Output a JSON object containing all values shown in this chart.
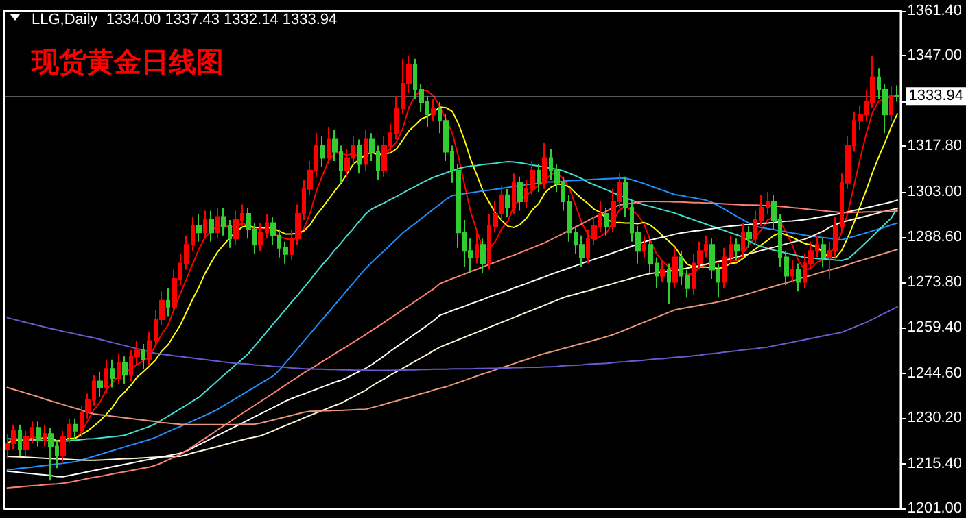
{
  "chart_data": {
    "type": "candlestick",
    "title": "现货黄金日线图",
    "subtitle": "LLG,Daily  1334.00 1337.43 1332.14 1333.94",
    "categories": [
      null,
      null,
      null,
      null,
      null,
      null,
      null,
      null,
      null,
      null,
      null,
      null,
      null,
      null,
      null,
      null,
      null,
      null,
      null,
      null,
      null,
      null,
      null,
      null,
      null,
      null,
      null,
      null,
      null,
      null,
      null,
      null,
      null,
      null,
      null,
      null,
      null,
      null,
      null,
      null,
      null,
      null,
      null,
      null,
      null,
      null,
      null,
      null,
      null,
      null,
      null,
      null,
      null,
      null,
      null,
      null,
      null,
      null,
      null,
      null,
      null,
      null,
      null,
      null,
      null,
      null,
      null,
      null,
      null,
      null,
      null,
      null,
      null,
      null,
      null,
      null,
      null,
      null,
      null,
      null,
      null,
      null,
      null,
      null,
      null,
      null,
      null,
      null,
      null,
      null,
      null,
      null,
      null,
      null,
      null,
      null,
      null,
      null,
      null,
      null,
      null,
      null,
      null,
      null,
      null,
      null,
      null,
      null,
      null,
      null,
      null,
      null,
      null,
      null,
      null,
      null,
      null,
      null,
      null,
      null,
      null,
      null,
      null,
      null,
      null,
      null,
      null,
      null,
      null,
      null,
      null,
      null,
      null,
      null,
      null,
      null,
      null,
      null,
      null,
      null,
      null,
      null,
      null,
      null,
      null
    ],
    "ohlc": [
      [
        1220,
        1225,
        1217,
        1222
      ],
      [
        1222,
        1228,
        1220,
        1226
      ],
      [
        1226,
        1228,
        1218,
        1220
      ],
      [
        1220,
        1226,
        1218,
        1224
      ],
      [
        1224,
        1229,
        1222,
        1227
      ],
      [
        1227,
        1229,
        1221,
        1223
      ],
      [
        1223,
        1228,
        1221,
        1225
      ],
      [
        1225,
        1227,
        1210,
        1221
      ],
      [
        1221,
        1223,
        1214,
        1218
      ],
      [
        1218,
        1226,
        1216,
        1224
      ],
      [
        1224,
        1230,
        1222,
        1228
      ],
      [
        1228,
        1230,
        1223,
        1226
      ],
      [
        1226,
        1234,
        1224,
        1232
      ],
      [
        1232,
        1238,
        1230,
        1236
      ],
      [
        1236,
        1244,
        1234,
        1242
      ],
      [
        1242,
        1245,
        1237,
        1240
      ],
      [
        1240,
        1249,
        1238,
        1246
      ],
      [
        1246,
        1249,
        1240,
        1243
      ],
      [
        1243,
        1251,
        1241,
        1248
      ],
      [
        1248,
        1250,
        1241,
        1244
      ],
      [
        1244,
        1252,
        1242,
        1250
      ],
      [
        1250,
        1255,
        1247,
        1252
      ],
      [
        1252,
        1254,
        1246,
        1249
      ],
      [
        1249,
        1258,
        1247,
        1255
      ],
      [
        1255,
        1265,
        1253,
        1262
      ],
      [
        1262,
        1271,
        1260,
        1268
      ],
      [
        1268,
        1272,
        1263,
        1266
      ],
      [
        1266,
        1278,
        1264,
        1275
      ],
      [
        1275,
        1283,
        1273,
        1280
      ],
      [
        1280,
        1289,
        1278,
        1286
      ],
      [
        1286,
        1295,
        1284,
        1292
      ],
      [
        1292,
        1296,
        1287,
        1290
      ],
      [
        1290,
        1297,
        1288,
        1294
      ],
      [
        1294,
        1297,
        1287,
        1290
      ],
      [
        1290,
        1298,
        1288,
        1295
      ],
      [
        1295,
        1298,
        1289,
        1292
      ],
      [
        1292,
        1294,
        1285,
        1288
      ],
      [
        1288,
        1297,
        1286,
        1294
      ],
      [
        1294,
        1299,
        1292,
        1296
      ],
      [
        1296,
        1298,
        1288,
        1291
      ],
      [
        1291,
        1293,
        1283,
        1286
      ],
      [
        1286,
        1293,
        1284,
        1290
      ],
      [
        1290,
        1296,
        1288,
        1293
      ],
      [
        1293,
        1295,
        1286,
        1289
      ],
      [
        1289,
        1291,
        1282,
        1285
      ],
      [
        1285,
        1287,
        1280,
        1283
      ],
      [
        1283,
        1291,
        1281,
        1288
      ],
      [
        1288,
        1299,
        1286,
        1296
      ],
      [
        1296,
        1307,
        1294,
        1304
      ],
      [
        1304,
        1313,
        1302,
        1310
      ],
      [
        1310,
        1322,
        1308,
        1318
      ],
      [
        1318,
        1321,
        1311,
        1314
      ],
      [
        1314,
        1324,
        1312,
        1320
      ],
      [
        1320,
        1323,
        1313,
        1316
      ],
      [
        1316,
        1318,
        1306,
        1310
      ],
      [
        1310,
        1317,
        1308,
        1314
      ],
      [
        1314,
        1321,
        1312,
        1318
      ],
      [
        1318,
        1320,
        1309,
        1312
      ],
      [
        1312,
        1323,
        1310,
        1320
      ],
      [
        1320,
        1322,
        1313,
        1316
      ],
      [
        1316,
        1318,
        1307,
        1310
      ],
      [
        1310,
        1321,
        1308,
        1318
      ],
      [
        1318,
        1325,
        1316,
        1322
      ],
      [
        1322,
        1334,
        1320,
        1330
      ],
      [
        1330,
        1346,
        1328,
        1338
      ],
      [
        1338,
        1347,
        1335,
        1344
      ],
      [
        1344,
        1346,
        1333,
        1336
      ],
      [
        1336,
        1338,
        1329,
        1332
      ],
      [
        1332,
        1334,
        1324,
        1328
      ],
      [
        1328,
        1333,
        1326,
        1330
      ],
      [
        1330,
        1332,
        1322,
        1326
      ],
      [
        1326,
        1328,
        1313,
        1316
      ],
      [
        1316,
        1318,
        1306,
        1310
      ],
      [
        1310,
        1312,
        1285,
        1290
      ],
      [
        1290,
        1294,
        1279,
        1284
      ],
      [
        1284,
        1288,
        1277,
        1282
      ],
      [
        1282,
        1290,
        1280,
        1286
      ],
      [
        1286,
        1288,
        1277,
        1280
      ],
      [
        1280,
        1296,
        1278,
        1292
      ],
      [
        1292,
        1300,
        1290,
        1296
      ],
      [
        1296,
        1305,
        1294,
        1302
      ],
      [
        1302,
        1304,
        1295,
        1298
      ],
      [
        1298,
        1309,
        1296,
        1306
      ],
      [
        1306,
        1308,
        1297,
        1300
      ],
      [
        1300,
        1307,
        1298,
        1304
      ],
      [
        1304,
        1313,
        1302,
        1310
      ],
      [
        1310,
        1312,
        1303,
        1306
      ],
      [
        1306,
        1319,
        1304,
        1314
      ],
      [
        1314,
        1317,
        1307,
        1310
      ],
      [
        1310,
        1312,
        1303,
        1306
      ],
      [
        1306,
        1308,
        1297,
        1300
      ],
      [
        1300,
        1302,
        1287,
        1290
      ],
      [
        1290,
        1292,
        1283,
        1286
      ],
      [
        1286,
        1289,
        1279,
        1282
      ],
      [
        1282,
        1291,
        1280,
        1288
      ],
      [
        1288,
        1295,
        1286,
        1292
      ],
      [
        1292,
        1300,
        1290,
        1296
      ],
      [
        1296,
        1298,
        1289,
        1292
      ],
      [
        1292,
        1304,
        1290,
        1300
      ],
      [
        1300,
        1309,
        1298,
        1306
      ],
      [
        1306,
        1308,
        1295,
        1298
      ],
      [
        1298,
        1300,
        1287,
        1290
      ],
      [
        1290,
        1292,
        1280,
        1284
      ],
      [
        1284,
        1289,
        1282,
        1286
      ],
      [
        1286,
        1288,
        1277,
        1280
      ],
      [
        1280,
        1282,
        1272,
        1276
      ],
      [
        1276,
        1281,
        1274,
        1278
      ],
      [
        1278,
        1280,
        1267,
        1274
      ],
      [
        1274,
        1285,
        1272,
        1282
      ],
      [
        1282,
        1284,
        1273,
        1276
      ],
      [
        1276,
        1278,
        1269,
        1272
      ],
      [
        1272,
        1283,
        1270,
        1280
      ],
      [
        1280,
        1287,
        1278,
        1284
      ],
      [
        1284,
        1289,
        1282,
        1286
      ],
      [
        1286,
        1288,
        1275,
        1278
      ],
      [
        1278,
        1280,
        1269,
        1274
      ],
      [
        1274,
        1285,
        1272,
        1282
      ],
      [
        1282,
        1289,
        1280,
        1286
      ],
      [
        1286,
        1288,
        1281,
        1284
      ],
      [
        1284,
        1293,
        1282,
        1290
      ],
      [
        1290,
        1292,
        1285,
        1288
      ],
      [
        1288,
        1297,
        1286,
        1294
      ],
      [
        1294,
        1302,
        1292,
        1298
      ],
      [
        1298,
        1303,
        1296,
        1300
      ],
      [
        1300,
        1302,
        1291,
        1294
      ],
      [
        1294,
        1296,
        1279,
        1282
      ],
      [
        1282,
        1284,
        1273,
        1276
      ],
      [
        1276,
        1281,
        1274,
        1278
      ],
      [
        1278,
        1280,
        1271,
        1274
      ],
      [
        1274,
        1283,
        1272,
        1280
      ],
      [
        1280,
        1287,
        1278,
        1284
      ],
      [
        1284,
        1289,
        1282,
        1286
      ],
      [
        1286,
        1288,
        1279,
        1282
      ],
      [
        1282,
        1287,
        1275,
        1284
      ],
      [
        1284,
        1295,
        1282,
        1292
      ],
      [
        1292,
        1309,
        1290,
        1306
      ],
      [
        1306,
        1321,
        1304,
        1318
      ],
      [
        1318,
        1329,
        1316,
        1326
      ],
      [
        1326,
        1331,
        1323,
        1328
      ],
      [
        1328,
        1336,
        1326,
        1332
      ],
      [
        1332,
        1347,
        1330,
        1340
      ],
      [
        1340,
        1343,
        1333,
        1336
      ],
      [
        1336,
        1338,
        1322,
        1328
      ],
      [
        1328,
        1337,
        1326,
        1334
      ],
      [
        1334,
        1337.43,
        1332.14,
        1333.94
      ]
    ],
    "colors": [
      "#ff0000",
      "#ff0000",
      "#32cd32",
      "#ff0000",
      "#ff0000",
      "#32cd32",
      "#ff0000",
      "#32cd32",
      "#32cd32",
      "#ff0000",
      "#ff0000",
      "#32cd32",
      "#ff0000",
      "#ff0000",
      "#ff0000",
      "#32cd32",
      "#ff0000",
      "#32cd32",
      "#ff0000",
      "#32cd32",
      "#ff0000",
      "#ff0000",
      "#32cd32",
      "#ff0000",
      "#ff0000",
      "#ff0000",
      "#32cd32",
      "#ff0000",
      "#ff0000",
      "#ff0000",
      "#ff0000",
      "#32cd32",
      "#ff0000",
      "#32cd32",
      "#ff0000",
      "#32cd32",
      "#32cd32",
      "#ff0000",
      "#ff0000",
      "#32cd32",
      "#32cd32",
      "#ff0000",
      "#ff0000",
      "#32cd32",
      "#32cd32",
      "#32cd32",
      "#ff0000",
      "#ff0000",
      "#ff0000",
      "#ff0000",
      "#ff0000",
      "#32cd32",
      "#ff0000",
      "#32cd32",
      "#32cd32",
      "#ff0000",
      "#ff0000",
      "#32cd32",
      "#ff0000",
      "#32cd32",
      "#32cd32",
      "#ff0000",
      "#ff0000",
      "#ff0000",
      "#ff0000",
      "#ff0000",
      "#32cd32",
      "#32cd32",
      "#32cd32",
      "#ff0000",
      "#32cd32",
      "#32cd32",
      "#32cd32",
      "#32cd32",
      "#32cd32",
      "#32cd32",
      "#ff0000",
      "#32cd32",
      "#ff0000",
      "#ff0000",
      "#ff0000",
      "#32cd32",
      "#ff0000",
      "#32cd32",
      "#ff0000",
      "#ff0000",
      "#32cd32",
      "#ff0000",
      "#32cd32",
      "#32cd32",
      "#32cd32",
      "#32cd32",
      "#32cd32",
      "#32cd32",
      "#ff0000",
      "#ff0000",
      "#ff0000",
      "#32cd32",
      "#ff0000",
      "#ff0000",
      "#32cd32",
      "#32cd32",
      "#32cd32",
      "#ff0000",
      "#32cd32",
      "#32cd32",
      "#ff0000",
      "#32cd32",
      "#ff0000",
      "#32cd32",
      "#32cd32",
      "#ff0000",
      "#ff0000",
      "#ff0000",
      "#32cd32",
      "#32cd32",
      "#ff0000",
      "#ff0000",
      "#32cd32",
      "#ff0000",
      "#32cd32",
      "#ff0000",
      "#ff0000",
      "#ff0000",
      "#32cd32",
      "#32cd32",
      "#32cd32",
      "#ff0000",
      "#32cd32",
      "#ff0000",
      "#ff0000",
      "#ff0000",
      "#32cd32",
      "#ff0000",
      "#ff0000",
      "#ff0000",
      "#ff0000",
      "#ff0000",
      "#ff0000",
      "#ff0000",
      "#ff0000",
      "#32cd32",
      "#32cd32",
      "#ff0000",
      "#32cd32"
    ],
    "series": [
      {
        "type": "line",
        "color": "#6a5acd",
        "values": [
          1262.5,
          1262,
          1261.5,
          1261,
          1260.5,
          1260,
          1259.5,
          1259,
          1258.6,
          1258.1,
          1257.7,
          1257.3,
          1256.8,
          1256.4,
          1256,
          1255.5,
          1255,
          1254.5,
          1254,
          1253.5,
          1253,
          1252.5,
          1252,
          1251.5,
          1251,
          1250.7,
          1250.5,
          1250.2,
          1250,
          1249.7,
          1249.5,
          1249.2,
          1249,
          1248.7,
          1248.5,
          1248.2,
          1248,
          1247.8,
          1247.7,
          1247.5,
          1247.3,
          1247.2,
          1247,
          1246.8,
          1246.7,
          1246.5,
          1246.3,
          1246.2,
          1246,
          1246,
          1245.9,
          1245.9,
          1245.8,
          1245.8,
          1245.7,
          1245.7,
          1245.6,
          1245.6,
          1245.6,
          1245.5,
          1245.5,
          1245.5,
          1245.5,
          1245.6,
          1245.6,
          1245.7,
          1245.7,
          1245.8,
          1245.8,
          1245.9,
          1245.9,
          1245.9,
          1246,
          1246,
          1246,
          1246,
          1246.1,
          1246.1,
          1246.2,
          1246.2,
          1246.3,
          1246.3,
          1246.4,
          1246.4,
          1246.5,
          1246.5,
          1246.5,
          1246.6,
          1246.7,
          1246.8,
          1247,
          1247.1,
          1247.2,
          1247.3,
          1247.5,
          1247.6,
          1247.7,
          1247.8,
          1248,
          1248.2,
          1248.3,
          1248.5,
          1248.6,
          1248.8,
          1249,
          1249.2,
          1249.3,
          1249.5,
          1249.7,
          1249.8,
          1250,
          1250.2,
          1250.4,
          1250.7,
          1250.9,
          1251.1,
          1251.4,
          1251.6,
          1251.8,
          1252.1,
          1252.3,
          1252.5,
          1252.8,
          1253,
          1253.4,
          1253.8,
          1254.2,
          1254.6,
          1255,
          1255.4,
          1255.8,
          1256.2,
          1256.6,
          1257,
          1257.4,
          1257.8,
          1258.6,
          1259.4,
          1260.2,
          1261,
          1262,
          1263,
          1264,
          1265,
          1266
        ]
      },
      {
        "type": "line",
        "color": "#e9967a",
        "values": [
          1240,
          1239.4,
          1238.8,
          1238.2,
          1237.6,
          1237,
          1236.3,
          1235.7,
          1235.1,
          1234.5,
          1233.9,
          1233.3,
          1232.7,
          1232,
          1231.5,
          1231.2,
          1231,
          1230.7,
          1230.5,
          1230.2,
          1230,
          1229.7,
          1229.5,
          1229.2,
          1229,
          1228.7,
          1228.5,
          1228.3,
          1228.1,
          1228,
          1228,
          1228,
          1228,
          1228,
          1228,
          1228,
          1228,
          1228,
          1228.1,
          1228.1,
          1228.2,
          1228.5,
          1229,
          1229.5,
          1230,
          1230.5,
          1231,
          1231.5,
          1232,
          1232.3,
          1232.4,
          1232.5,
          1232.5,
          1232.6,
          1232.6,
          1232.7,
          1232.8,
          1232.9,
          1233,
          1233.5,
          1234,
          1234.6,
          1235.2,
          1235.7,
          1236.3,
          1236.8,
          1237.4,
          1238,
          1238.5,
          1239.2,
          1239.7,
          1240.2,
          1240.9,
          1241.6,
          1242.3,
          1243,
          1243.7,
          1244.4,
          1245,
          1245.7,
          1246.4,
          1247,
          1247.7,
          1248.4,
          1249,
          1249.7,
          1250.4,
          1251,
          1251.5,
          1252,
          1252.6,
          1253.1,
          1253.7,
          1254.2,
          1254.7,
          1255.3,
          1255.8,
          1256.4,
          1257,
          1257.8,
          1258.6,
          1259.4,
          1260.2,
          1261,
          1261.8,
          1262.6,
          1263.4,
          1264.2,
          1265,
          1265.4,
          1265.8,
          1266.1,
          1266.5,
          1266.9,
          1267.2,
          1267.6,
          1268,
          1268.6,
          1269.2,
          1269.7,
          1270.3,
          1270.9,
          1271.5,
          1272,
          1272.6,
          1273.2,
          1273.7,
          1274.3,
          1275,
          1275.6,
          1276.1,
          1276.7,
          1277.3,
          1277.9,
          1278.4,
          1279,
          1279.6,
          1280.3,
          1280.9,
          1281.5,
          1282.1,
          1282.7,
          1283.3,
          1283.9,
          1284.5
        ]
      },
      {
        "type": "line",
        "color": "#fa8072",
        "values": [
          1207.6,
          1207.8,
          1207.9,
          1208.1,
          1208.3,
          1208.4,
          1208.6,
          1208.8,
          1208.9,
          1209.1,
          1209.4,
          1209.8,
          1210.2,
          1210.6,
          1211,
          1211.3,
          1211.7,
          1212.1,
          1212.5,
          1212.8,
          1213.2,
          1213.6,
          1214,
          1214.3,
          1214.9,
          1215.7,
          1216.6,
          1217.5,
          1218.4,
          1219.6,
          1220.9,
          1222.3,
          1223.6,
          1224.9,
          1226.3,
          1227.6,
          1228.9,
          1230.3,
          1231.6,
          1232.9,
          1234.2,
          1235.5,
          1236.8,
          1238.1,
          1239.4,
          1240.8,
          1242.1,
          1243.4,
          1244.7,
          1245.9,
          1247.1,
          1248.4,
          1249.6,
          1250.9,
          1252.1,
          1253.3,
          1254.6,
          1255.8,
          1257.1,
          1258.4,
          1259.7,
          1261,
          1262.4,
          1263.7,
          1265.1,
          1266.4,
          1267.8,
          1269.1,
          1270.5,
          1271.8,
          1273.5,
          1274.3,
          1275.1,
          1275.8,
          1276.6,
          1277.4,
          1278.1,
          1278.9,
          1279.7,
          1280.4,
          1281.2,
          1282,
          1282.7,
          1283.5,
          1284.3,
          1285.1,
          1285.9,
          1286.7,
          1287.7,
          1288.7,
          1289.7,
          1290.8,
          1291.8,
          1292.8,
          1293.9,
          1294.9,
          1295.9,
          1296.9,
          1298,
          1298.8,
          1299.1,
          1299.4,
          1299.7,
          1300,
          1300,
          1300,
          1299.9,
          1299.9,
          1299.8,
          1299.8,
          1299.7,
          1299.6,
          1299.6,
          1299.5,
          1299.4,
          1299.3,
          1299.2,
          1299.1,
          1299,
          1298.9,
          1298.8,
          1298.8,
          1298.7,
          1298.6,
          1298.6,
          1298.4,
          1298.2,
          1298,
          1297.8,
          1297.6,
          1297.4,
          1297.2,
          1297,
          1296.8,
          1296.6,
          1296.4,
          1296.4,
          1296.5,
          1296.5,
          1296.6,
          1296.6,
          1296.7,
          1296.8,
          1296.8,
          1296.9
        ]
      },
      {
        "type": "line",
        "color": "#ffffff",
        "values": [
          1213,
          1212.8,
          1212.6,
          1212.4,
          1212.2,
          1212,
          1211.8,
          1211.6,
          1211.3,
          1211.2,
          1211.6,
          1212,
          1212.4,
          1212.8,
          1213.2,
          1213.6,
          1214,
          1214.4,
          1214.8,
          1215.2,
          1215.6,
          1216,
          1216.4,
          1216.8,
          1217.2,
          1217.6,
          1218,
          1218.4,
          1218.8,
          1219.5,
          1220.5,
          1221.5,
          1222.5,
          1223.5,
          1224.5,
          1225.5,
          1226.5,
          1227.5,
          1228.5,
          1229.5,
          1230.5,
          1231.5,
          1232.5,
          1233.5,
          1234.5,
          1235.6,
          1236.4,
          1237.2,
          1237.9,
          1238.7,
          1239.4,
          1240.2,
          1240.9,
          1241.7,
          1242.3,
          1243.2,
          1244.2,
          1245.2,
          1246.2,
          1247.4,
          1248.8,
          1250.2,
          1251.7,
          1253.1,
          1254.5,
          1255.9,
          1257.3,
          1258.7,
          1260.1,
          1261.6,
          1263.3,
          1264,
          1264.8,
          1265.5,
          1266.2,
          1267,
          1267.7,
          1268.4,
          1269.2,
          1269.9,
          1270.6,
          1271.3,
          1272.1,
          1272.8,
          1273.5,
          1274.3,
          1275,
          1275.7,
          1276.5,
          1277.2,
          1277.9,
          1278.6,
          1279.3,
          1280,
          1280.7,
          1281.4,
          1282,
          1282.7,
          1283.4,
          1284.1,
          1284.8,
          1285.5,
          1286.2,
          1286.9,
          1287.5,
          1288,
          1288.5,
          1288.9,
          1289.4,
          1289.8,
          1290.1,
          1290.4,
          1290.6,
          1290.9,
          1291.2,
          1291.5,
          1291.8,
          1292,
          1292.2,
          1292.4,
          1292.5,
          1292.7,
          1292.9,
          1293,
          1293.2,
          1293.4,
          1293.6,
          1293.7,
          1293.9,
          1294.1,
          1294.4,
          1294.8,
          1295.1,
          1295.5,
          1295.8,
          1296.2,
          1296.6,
          1297.1,
          1297.5,
          1298,
          1298.4,
          1298.9,
          1299.3,
          1299.8,
          1300.4
        ]
      },
      {
        "type": "line",
        "color": "#fff5d7",
        "values": [
          1217.8,
          1217.7,
          1217.6,
          1217.5,
          1217.4,
          1217.3,
          1217.2,
          1217.1,
          1217,
          1216.9,
          1216.8,
          1216.7,
          1216.6,
          1216.5,
          1216.5,
          1216.6,
          1216.7,
          1216.8,
          1216.9,
          1217,
          1217.1,
          1217.2,
          1217.3,
          1217.4,
          1217.5,
          1217.6,
          1217.7,
          1217.8,
          1217.8,
          1218.3,
          1218.9,
          1219.4,
          1219.9,
          1220.4,
          1220.9,
          1221.5,
          1222,
          1222.6,
          1223.1,
          1223.6,
          1224,
          1224.4,
          1225.2,
          1226,
          1226.9,
          1227.7,
          1228.5,
          1229.3,
          1230.2,
          1231,
          1231.8,
          1232.6,
          1233.4,
          1234.2,
          1234.9,
          1236,
          1237,
          1238.1,
          1239.1,
          1240.5,
          1241.7,
          1242.8,
          1244,
          1245.1,
          1246.2,
          1247.3,
          1248.5,
          1249.6,
          1250.7,
          1251.9,
          1253,
          1253.8,
          1254.6,
          1255.4,
          1256.2,
          1257,
          1257.8,
          1258.6,
          1259.4,
          1260.2,
          1261,
          1261.8,
          1262.6,
          1263.4,
          1264.2,
          1265,
          1265.8,
          1266.6,
          1267.4,
          1268.2,
          1269,
          1269.6,
          1270.1,
          1270.7,
          1271.2,
          1271.8,
          1272.4,
          1272.9,
          1273.5,
          1274.1,
          1274.6,
          1275.2,
          1275.7,
          1276.3,
          1276.7,
          1277,
          1277.2,
          1277.5,
          1277.8,
          1278.1,
          1278.5,
          1278.9,
          1279.3,
          1279.7,
          1280.2,
          1280.6,
          1281,
          1281.5,
          1282.1,
          1282.6,
          1283.1,
          1283.6,
          1284.2,
          1284.7,
          1285.2,
          1285.7,
          1286.3,
          1286.8,
          1287.3,
          1287.8,
          1288.6,
          1289.5,
          1290.4,
          1291.6,
          1292.5,
          1293.3,
          1293.8,
          1294.3,
          1294.8,
          1295.3,
          1295.8,
          1296.3,
          1296.8,
          1297.3,
          1297.8
        ]
      },
      {
        "type": "line",
        "color": "#40e0d0",
        "values": [
          1223.5,
          1223.4,
          1223.3,
          1223.2,
          1223.1,
          1223,
          1222.9,
          1222.8,
          1222.7,
          1222.7,
          1222.8,
          1223,
          1223.2,
          1223.4,
          1223.5,
          1223.7,
          1223.9,
          1224.1,
          1224.3,
          1224.6,
          1225.3,
          1226,
          1226.7,
          1227.4,
          1228.3,
          1229.5,
          1230.7,
          1231.9,
          1233.1,
          1234.3,
          1235.6,
          1236.8,
          1238.6,
          1240.3,
          1242.1,
          1243.9,
          1245.6,
          1247.4,
          1249.1,
          1250.9,
          1253.3,
          1255.6,
          1258,
          1260.4,
          1262.7,
          1265.1,
          1267.5,
          1269.8,
          1272.2,
          1274.6,
          1277.2,
          1279.6,
          1281.9,
          1284.3,
          1286.6,
          1289,
          1291.3,
          1293.7,
          1296,
          1297.6,
          1298.6,
          1299.5,
          1300.6,
          1301.6,
          1302.7,
          1303.8,
          1304.8,
          1305.9,
          1306.9,
          1307.8,
          1308.5,
          1309.2,
          1309.9,
          1310.6,
          1311.1,
          1311.4,
          1311.6,
          1311.9,
          1312.1,
          1312.3,
          1312.6,
          1312.8,
          1312.7,
          1312.4,
          1312.1,
          1311.7,
          1311.4,
          1311,
          1310.7,
          1310.3,
          1309.8,
          1309,
          1308.2,
          1307.3,
          1306.1,
          1305.3,
          1304.5,
          1303.7,
          1302.8,
          1302,
          1301.2,
          1300.4,
          1299.6,
          1298.9,
          1298.4,
          1297.9,
          1297.3,
          1296.8,
          1296.2,
          1295.5,
          1294.8,
          1294.1,
          1293.4,
          1292.7,
          1292,
          1291.3,
          1290.6,
          1289.9,
          1289.2,
          1288.5,
          1287.2,
          1286.2,
          1285.5,
          1284.8,
          1284.3,
          1283.8,
          1283.3,
          1282.9,
          1282.4,
          1281.9,
          1281.8,
          1281.6,
          1281.5,
          1281.3,
          1281.1,
          1281,
          1281.5,
          1283.2,
          1285,
          1286.9,
          1288.8,
          1290.8,
          1292.7,
          1294.6,
          1297.8
        ]
      },
      {
        "type": "line",
        "color": "#1e90ff",
        "values": [
          1213.4,
          1213.6,
          1213.9,
          1214.1,
          1214.3,
          1214.6,
          1214.8,
          1215.1,
          1215.3,
          1215.5,
          1215.8,
          1216,
          1216.6,
          1217.2,
          1217.8,
          1218.4,
          1219,
          1219.6,
          1220.2,
          1220.8,
          1221.4,
          1222,
          1222.6,
          1223.2,
          1223.9,
          1224.8,
          1225.7,
          1226.6,
          1227.4,
          1228.3,
          1229.2,
          1230.1,
          1231,
          1231.9,
          1232.9,
          1234.1,
          1235.3,
          1236.5,
          1237.7,
          1238.9,
          1240.1,
          1241.3,
          1242.5,
          1243.7,
          1245.5,
          1247.9,
          1250.2,
          1252.6,
          1255,
          1257.3,
          1259.7,
          1262,
          1264.3,
          1266.7,
          1269,
          1271.4,
          1273.7,
          1276.1,
          1278.4,
          1280.4,
          1282.3,
          1284.1,
          1286,
          1287.9,
          1289.8,
          1291.4,
          1292.9,
          1294.5,
          1296,
          1297.6,
          1299.1,
          1300.7,
          1301.9,
          1302.2,
          1302.5,
          1302.8,
          1303.1,
          1303.4,
          1303.6,
          1303.9,
          1304.2,
          1304.5,
          1304.8,
          1305.1,
          1305.4,
          1305.6,
          1305.9,
          1306.2,
          1306.3,
          1306.4,
          1306.5,
          1306.7,
          1306.8,
          1306.9,
          1307,
          1307.1,
          1307.2,
          1307.3,
          1307.4,
          1307.5,
          1307.5,
          1307,
          1306.4,
          1305.8,
          1305,
          1304.3,
          1303.6,
          1302.9,
          1302.2,
          1301.9,
          1301.5,
          1301.2,
          1300.8,
          1300.4,
          1299.7,
          1298.6,
          1297.5,
          1296.3,
          1295.2,
          1294.1,
          1293,
          1291.9,
          1291.6,
          1291.2,
          1290.9,
          1290.5,
          1290.2,
          1289.8,
          1289.5,
          1289.1,
          1288.8,
          1288.6,
          1288.3,
          1288.1,
          1287.8,
          1287.6,
          1288.2,
          1288.7,
          1289.3,
          1289.9,
          1290.5,
          1291.1,
          1291.7,
          1292.4,
          1293
        ]
      },
      {
        "type": "line",
        "color": "#ffff00",
        "values": [
          1222,
          1223,
          1223,
          1223,
          1223.5,
          1223,
          1223.9,
          1223.5,
          1222.9,
          1223,
          1223.6,
          1223.6,
          1224.8,
          1226,
          1227.5,
          1229.2,
          1231.3,
          1233.5,
          1236.5,
          1238.5,
          1240.7,
          1243.3,
          1245,
          1246.9,
          1248.9,
          1251.7,
          1253.7,
          1256.9,
          1260.1,
          1264.3,
          1268.5,
          1272.3,
          1276.8,
          1280.3,
          1283.6,
          1286,
          1288.2,
          1290.1,
          1291.7,
          1292.2,
          1291.6,
          1291.6,
          1291.5,
          1291.4,
          1290.4,
          1289.5,
          1289.5,
          1289.7,
          1290.5,
          1292.4,
          1295.6,
          1298,
          1300.7,
          1303.4,
          1305.9,
          1309,
          1312,
          1313.6,
          1315.2,
          1315.8,
          1315,
          1315.4,
          1315.6,
          1317,
          1319.8,
          1322.8,
          1324.6,
          1326.6,
          1327.4,
          1328.8,
          1330.4,
          1330.2,
          1329,
          1325,
          1319.6,
          1313.4,
          1308.4,
          1303.2,
          1299.6,
          1296.2,
          1293.8,
          1292,
          1291.6,
          1292.6,
          1294.6,
          1297.4,
          1299.4,
          1302.8,
          1304.6,
          1305.6,
          1305.4,
          1304.6,
          1302.6,
          1300.8,
          1299.2,
          1297.4,
          1296.4,
          1294.2,
          1293.2,
          1293.2,
          1293,
          1293,
          1292.8,
          1293.2,
          1292.4,
          1290.8,
          1289,
          1287.2,
          1285.4,
          1282.4,
          1279.8,
          1278.8,
          1278.8,
          1278.8,
          1278.6,
          1278.4,
          1278.8,
          1280,
          1280.2,
          1281.6,
          1283.2,
          1284.6,
          1286,
          1287.4,
          1289,
          1289.8,
          1289.2,
          1288.4,
          1287.4,
          1286.4,
          1286,
          1285.2,
          1283.6,
          1282,
          1281.8,
          1284.2,
          1288.4,
          1293.2,
          1298.6,
          1303.8,
          1309.4,
          1314.4,
          1319,
          1324,
          1328.2
        ]
      },
      {
        "type": "line",
        "color": "#ff0000",
        "values": [
          1222,
          1224,
          1223,
          1223,
          1223.8,
          1224,
          1223.8,
          1224,
          1222.8,
          1222.2,
          1223.2,
          1223.4,
          1225.6,
          1229.2,
          1232.8,
          1235.2,
          1239.2,
          1241.4,
          1243.8,
          1244.2,
          1246.2,
          1247.4,
          1248.6,
          1250,
          1253.6,
          1257.2,
          1260,
          1265.2,
          1270.2,
          1275,
          1279.8,
          1284.6,
          1288.4,
          1290.4,
          1292.2,
          1292.2,
          1291.8,
          1291.8,
          1293,
          1292.2,
          1291,
          1291.4,
          1291.2,
          1289.8,
          1288.6,
          1288,
          1287.6,
          1288.2,
          1291.2,
          1296.2,
          1303.2,
          1308.4,
          1313.2,
          1315.6,
          1315.6,
          1314.8,
          1315.6,
          1314,
          1314.8,
          1316,
          1315.2,
          1315.2,
          1317.2,
          1319.2,
          1323.6,
          1330.4,
          1334,
          1336,
          1335.6,
          1334,
          1330.4,
          1326.4,
          1322,
          1314.4,
          1305.2,
          1296.4,
          1290.4,
          1284.4,
          1284.8,
          1287.2,
          1291.2,
          1293.6,
          1298.8,
          1300.4,
          1302,
          1303.6,
          1305.2,
          1306.8,
          1308.8,
          1309.2,
          1307.2,
          1304,
          1298.4,
          1292.8,
          1289.2,
          1287.6,
          1288.8,
          1290,
          1293.6,
          1297.2,
          1298.4,
          1297.2,
          1295.6,
          1292.8,
          1287.6,
          1283.2,
          1280.8,
          1278.8,
          1278,
          1277.2,
          1276.4,
          1276.8,
          1278.8,
          1279.6,
          1280,
          1280.4,
          1280.8,
          1281.2,
          1280.8,
          1283.2,
          1286,
          1288.4,
          1290.8,
          1294,
          1294.8,
          1293.6,
          1290,
          1286,
          1280.8,
          1278,
          1278.4,
          1280.4,
          1281.2,
          1283.2,
          1285.6,
          1290,
          1296.4,
          1305.2,
          1314,
          1322,
          1328.8,
          1332.4,
          1332.8,
          1334,
          1334.4
        ]
      }
    ],
    "ylim": [
      1201,
      1361.4
    ],
    "yticks": [
      {
        "value": 1201,
        "label": "1201.00"
      },
      {
        "value": 1215.4,
        "label": "1215.40"
      },
      {
        "value": 1230.2,
        "label": "1230.20"
      },
      {
        "value": 1244.6,
        "label": "1244.60"
      },
      {
        "value": 1259.4,
        "label": "1259.40"
      },
      {
        "value": 1273.8,
        "label": "1273.80"
      },
      {
        "value": 1288.6,
        "label": "1288.60"
      },
      {
        "value": 1303,
        "label": "1303.00"
      },
      {
        "value": 1317.8,
        "label": "1317.80"
      },
      {
        "value": 1332.2,
        "label": null
      },
      {
        "value": 1347,
        "label": "1347.00"
      },
      {
        "value": 1361.4,
        "label": "1361.40"
      }
    ],
    "tick_labels": "y",
    "ref_lines": [
      {
        "axis": "y",
        "value": 1333.94,
        "label": "1333.94"
      }
    ]
  }
}
